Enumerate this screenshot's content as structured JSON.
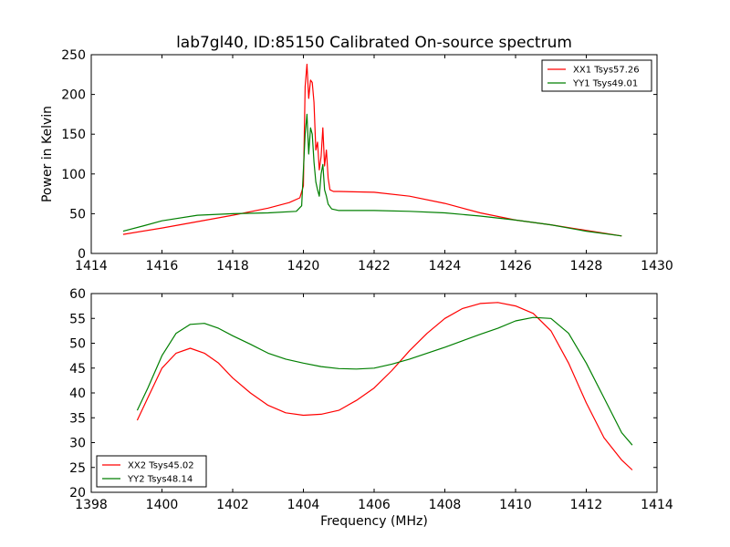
{
  "title": "lab7gl40, ID:85150 Calibrated On-source spectrum",
  "colors": {
    "red": "#ff0000",
    "green": "#007f00"
  },
  "chart_data": [
    {
      "type": "line",
      "xlim": [
        1414,
        1430
      ],
      "ylim": [
        0,
        250
      ],
      "xticks": [
        1414,
        1416,
        1418,
        1420,
        1422,
        1424,
        1426,
        1428,
        1430
      ],
      "yticks": [
        0,
        50,
        100,
        150,
        200,
        250
      ],
      "xlabel": "",
      "ylabel": "Power in Kelvin",
      "legend": "top-right",
      "series": [
        {
          "name": "XX1 Tsys57.26",
          "color": "#ff0000",
          "x": [
            1414.9,
            1416,
            1417,
            1418,
            1419,
            1419.6,
            1419.9,
            1420.0,
            1420.05,
            1420.1,
            1420.15,
            1420.2,
            1420.25,
            1420.3,
            1420.35,
            1420.4,
            1420.45,
            1420.5,
            1420.55,
            1420.6,
            1420.65,
            1420.7,
            1420.75,
            1420.85,
            1421,
            1422,
            1423,
            1424,
            1425,
            1426,
            1427,
            1428,
            1429
          ],
          "y": [
            24,
            32,
            40,
            48,
            57,
            64,
            70,
            85,
            210,
            238,
            195,
            218,
            215,
            190,
            130,
            140,
            105,
            122,
            158,
            110,
            130,
            95,
            80,
            78,
            78,
            77,
            72,
            63,
            51,
            42,
            36,
            29,
            22
          ]
        },
        {
          "name": "YY1 Tsys49.01",
          "color": "#007f00",
          "x": [
            1414.9,
            1415.5,
            1416,
            1417,
            1418,
            1419,
            1419.8,
            1419.95,
            1420.05,
            1420.1,
            1420.15,
            1420.2,
            1420.25,
            1420.3,
            1420.35,
            1420.4,
            1420.45,
            1420.5,
            1420.55,
            1420.6,
            1420.65,
            1420.7,
            1420.8,
            1421,
            1422,
            1423,
            1424,
            1425,
            1426,
            1427,
            1428,
            1429
          ],
          "y": [
            28,
            35,
            41,
            48,
            50,
            51,
            53,
            60,
            150,
            175,
            125,
            158,
            150,
            115,
            90,
            80,
            72,
            100,
            112,
            80,
            72,
            62,
            56,
            54,
            54,
            53,
            51,
            47,
            42,
            36,
            28,
            22
          ]
        }
      ]
    },
    {
      "type": "line",
      "xlim": [
        1398,
        1414
      ],
      "ylim": [
        20,
        60
      ],
      "xticks": [
        1398,
        1400,
        1402,
        1404,
        1406,
        1408,
        1410,
        1412,
        1414
      ],
      "yticks": [
        20,
        25,
        30,
        35,
        40,
        45,
        50,
        55,
        60
      ],
      "xlabel": "Frequency (MHz)",
      "ylabel": "",
      "legend": "bottom-left",
      "series": [
        {
          "name": "XX2 Tsys45.02",
          "color": "#ff0000",
          "x": [
            1399.3,
            1399.6,
            1400.0,
            1400.4,
            1400.8,
            1401.2,
            1401.6,
            1402.0,
            1402.5,
            1403.0,
            1403.5,
            1404.0,
            1404.5,
            1405.0,
            1405.5,
            1406.0,
            1406.5,
            1407.0,
            1407.5,
            1408.0,
            1408.5,
            1409.0,
            1409.5,
            1410.0,
            1410.5,
            1411.0,
            1411.5,
            1412.0,
            1412.5,
            1413.0,
            1413.3
          ],
          "y": [
            34.5,
            39,
            45,
            48,
            49,
            48,
            46,
            43,
            40,
            37.5,
            36,
            35.5,
            35.7,
            36.5,
            38.5,
            41,
            44.5,
            48.5,
            52,
            55,
            57,
            58,
            58.2,
            57.5,
            56,
            52.5,
            46,
            38,
            31,
            26.5,
            24.5
          ]
        },
        {
          "name": "YY2 Tsys48.14",
          "color": "#007f00",
          "x": [
            1399.3,
            1399.6,
            1400.0,
            1400.4,
            1400.8,
            1401.2,
            1401.6,
            1402.0,
            1402.5,
            1403.0,
            1403.5,
            1404.0,
            1404.5,
            1405.0,
            1405.5,
            1406.0,
            1406.5,
            1407.0,
            1407.5,
            1408.0,
            1408.5,
            1409.0,
            1409.5,
            1410.0,
            1410.5,
            1411.0,
            1411.5,
            1412.0,
            1412.5,
            1413.0,
            1413.3
          ],
          "y": [
            36.5,
            41,
            47.5,
            52,
            53.8,
            54,
            53,
            51.5,
            49.8,
            48,
            46.8,
            46,
            45.3,
            44.9,
            44.8,
            45,
            45.8,
            46.8,
            48,
            49.2,
            50.5,
            51.8,
            53,
            54.5,
            55.2,
            55,
            52,
            46,
            39,
            32,
            29.5
          ]
        }
      ]
    }
  ]
}
